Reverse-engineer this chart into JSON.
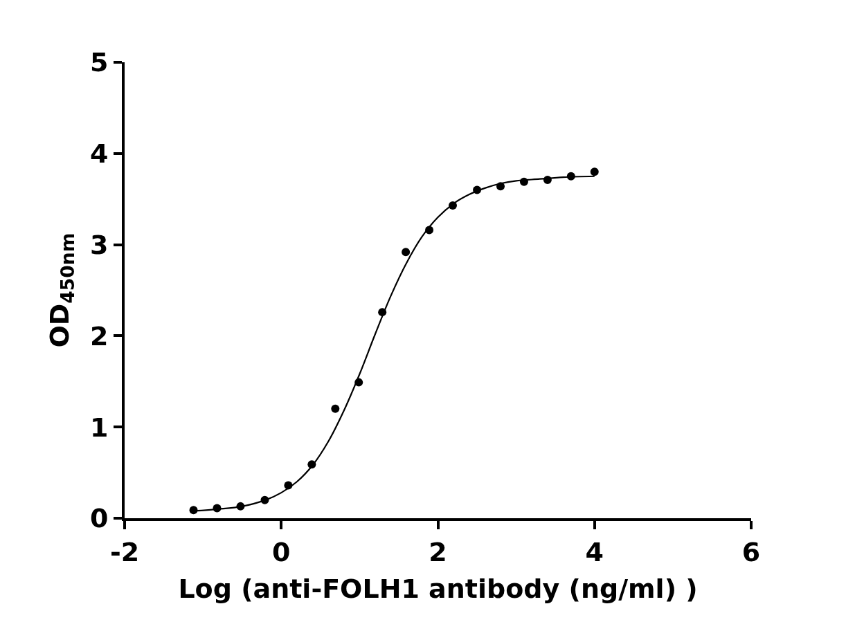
{
  "chart_data": {
    "type": "scatter",
    "xlabel": "Log (anti-FOLH1 antibody (ng/ml) )",
    "ylabel": "OD$_{450nm}$",
    "series": [
      {
        "color": "#000000",
        "marker": "circle",
        "x": [
          -1.12,
          -0.82,
          -0.52,
          -0.21,
          0.09,
          0.39,
          0.69,
          0.99,
          1.29,
          1.59,
          1.89,
          2.19,
          2.5,
          2.8,
          3.1,
          3.4,
          3.7,
          4.0
        ],
        "values": [
          0.09,
          0.11,
          0.13,
          0.2,
          0.36,
          0.59,
          1.2,
          1.49,
          2.26,
          2.92,
          3.16,
          3.43,
          3.6,
          3.64,
          3.69,
          3.71,
          3.75,
          3.8
        ]
      },
      {
        "type": "line",
        "color": "#000000",
        "line_style": "solid",
        "x": [
          -1.12,
          -0.8,
          -0.5,
          -0.2,
          0,
          0.2,
          0.4,
          0.6,
          0.8,
          1.0,
          1.2,
          1.4,
          1.6,
          1.8,
          2.0,
          2.2,
          2.4,
          2.6,
          2.8,
          3.0,
          3.3,
          3.6,
          4.0
        ],
        "values": [
          0.08,
          0.1,
          0.13,
          0.2,
          0.28,
          0.4,
          0.58,
          0.84,
          1.18,
          1.58,
          2.02,
          2.44,
          2.8,
          3.09,
          3.3,
          3.45,
          3.55,
          3.62,
          3.67,
          3.7,
          3.72,
          3.74,
          3.75
        ]
      }
    ],
    "xlim": [
      -2,
      6
    ],
    "xticks": [
      -2,
      0,
      2,
      4,
      6
    ],
    "ylim": [
      0,
      5
    ],
    "yticks": [
      0,
      1,
      2,
      3,
      4,
      5
    ],
    "grid": false
  }
}
